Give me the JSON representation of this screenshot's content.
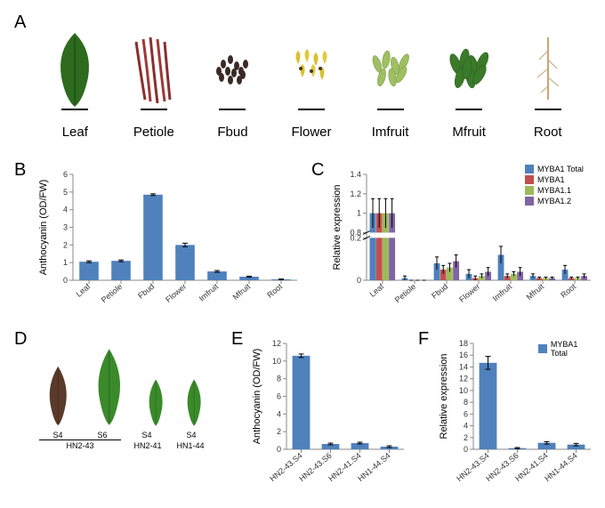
{
  "panel_labels": {
    "A": "A",
    "B": "B",
    "C": "C",
    "D": "D",
    "E": "E",
    "F": "F"
  },
  "tissues": [
    "Leaf",
    "Petiole",
    "Fbud",
    "Flower",
    "Imfruit",
    "Mfruit",
    "Root"
  ],
  "tissue_colors": {
    "Leaf": "#2d6b1e",
    "Petiole": "#8b2e2e",
    "Fbud": "#3a2a25",
    "Flower": "#d8c22e",
    "Imfruit": "#9fbf63",
    "Mfruit": "#3a7a2a",
    "Root": "#c9a574"
  },
  "panelB": {
    "type": "bar",
    "y_title": "Anthocyanin (OD/FW)",
    "categories": [
      "Leaf",
      "Petiole",
      "Fbud",
      "Flower",
      "Imfruit",
      "Mfruit",
      "Root"
    ],
    "values": [
      1.05,
      1.1,
      4.85,
      2.0,
      0.5,
      0.2,
      0.05
    ],
    "err": [
      0.05,
      0.05,
      0.05,
      0.1,
      0.05,
      0.03,
      0.02
    ],
    "ylim": [
      0,
      6
    ],
    "ytick_step": 1,
    "bar_color": "#4f81bd",
    "grid": false
  },
  "panelC": {
    "type": "grouped_bar",
    "y_title": "Relative expression",
    "categories": [
      "Leaf",
      "Petiole",
      "Fbud",
      "Flower",
      "Imfruit",
      "Mfruit",
      "Root"
    ],
    "series": [
      "MYBA1 Total",
      "MYBA1",
      "MYBA1.1",
      "MYBA1.2"
    ],
    "series_colors": {
      "MYBA1 Total": "#4f81bd",
      "MYBA1": "#c0504d",
      "MYBA1.1": "#9bbb59",
      "MYBA1.2": "#8064a2"
    },
    "values": {
      "MYBA1 Total": [
        1.0,
        0.01,
        0.08,
        0.03,
        0.12,
        0.02,
        0.05
      ],
      "MYBA1": [
        1.0,
        0.0,
        0.05,
        0.01,
        0.02,
        0.01,
        0.01
      ],
      "MYBA1.1": [
        1.0,
        0.0,
        0.06,
        0.02,
        0.03,
        0.01,
        0.01
      ],
      "MYBA1.2": [
        1.0,
        0.0,
        0.09,
        0.04,
        0.04,
        0.01,
        0.02
      ]
    },
    "err": {
      "MYBA1 Total": [
        0.15,
        0.01,
        0.03,
        0.02,
        0.04,
        0.01,
        0.02
      ],
      "MYBA1": [
        0.15,
        0.0,
        0.02,
        0.01,
        0.01,
        0.005,
        0.005
      ],
      "MYBA1.1": [
        0.15,
        0.0,
        0.02,
        0.01,
        0.01,
        0.005,
        0.005
      ],
      "MYBA1.2": [
        0.15,
        0.0,
        0.03,
        0.02,
        0.02,
        0.005,
        0.01
      ]
    },
    "ylim": [
      0,
      1.4
    ],
    "yticks": [
      0,
      0.2,
      0.4,
      0.6,
      0.8,
      1,
      1.2,
      1.4
    ],
    "axis_break": true
  },
  "panelD": {
    "items": [
      {
        "label": "S4",
        "genotype": "HN2-43",
        "color": "#5a3a2a",
        "size": 70
      },
      {
        "label": "S6",
        "genotype": "HN2-43",
        "color": "#3a8a2a",
        "size": 90
      },
      {
        "label": "S4",
        "genotype": "HN2-41",
        "color": "#3a8a2a",
        "size": 55
      },
      {
        "label": "S4",
        "genotype": "HN1-44",
        "color": "#3a8a2a",
        "size": 55
      }
    ],
    "group_line_label": "HN2-43"
  },
  "panelE": {
    "type": "bar",
    "y_title": "Anthocyanin (OD/FW)",
    "categories": [
      "HN2-43.S4",
      "HN2-43.S6",
      "HN2-41.S4",
      "HN1-44.S4"
    ],
    "values": [
      10.6,
      0.6,
      0.7,
      0.3
    ],
    "err": [
      0.2,
      0.1,
      0.1,
      0.1
    ],
    "ylim": [
      0,
      12
    ],
    "ytick_step": 2,
    "bar_color": "#4f81bd"
  },
  "panelF": {
    "type": "bar",
    "y_title": "Relative expression",
    "categories": [
      "HN2-43.S4",
      "HN2-43.S6",
      "HN2-41.S4",
      "HN1-44.S4"
    ],
    "values": [
      14.7,
      0.2,
      1.1,
      0.8
    ],
    "err": [
      1.1,
      0.1,
      0.2,
      0.2
    ],
    "ylim": [
      0,
      18
    ],
    "ytick_step": 2,
    "bar_color": "#4f81bd",
    "legend_label": "MYBA1 Total"
  },
  "chart_style": {
    "axis_color": "#808080",
    "tick_fontsize": 9,
    "label_fontsize": 11,
    "xlabel_rotation": -40
  }
}
